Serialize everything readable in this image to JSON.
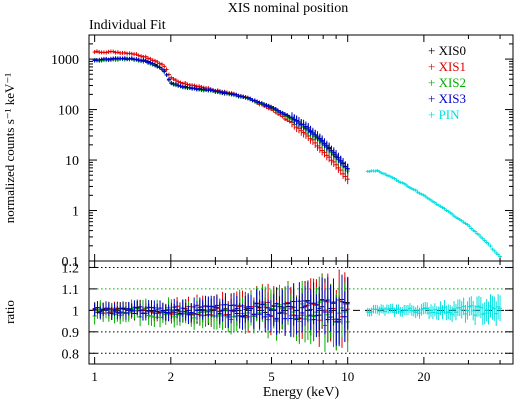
{
  "title": "XIS nominal position",
  "subtitle": "Individual Fit",
  "xlabel": "Energy (keV)",
  "chart_data": [
    {
      "type": "scatter",
      "panel": "spectrum",
      "title": "XIS nominal position",
      "subtitle": "Individual Fit",
      "ylabel": "normalized counts s⁻¹ keV⁻¹",
      "yscale": "log",
      "xscale": "log",
      "xlim": [
        0.95,
        45
      ],
      "ylim": [
        0.1,
        3000
      ],
      "x_ticks": [
        "1",
        "2",
        "5",
        "10",
        "20"
      ],
      "y_ticks": [
        "0.1",
        "1",
        "10",
        "100",
        "1000"
      ],
      "legend_position": "top-right",
      "series": [
        {
          "name": "XIS0",
          "color": "#000000",
          "x": [
            1.0,
            1.2,
            1.4,
            1.6,
            1.8,
            1.9,
            2.0,
            2.2,
            2.5,
            3.0,
            3.5,
            4.0,
            5.0,
            6.0,
            7.0,
            8.0,
            9.0,
            10.0
          ],
          "y": [
            950,
            1000,
            1020,
            900,
            700,
            560,
            330,
            290,
            260,
            230,
            200,
            170,
            110,
            68,
            40,
            22,
            12,
            6.5
          ]
        },
        {
          "name": "XIS1",
          "color": "#e00000",
          "x": [
            1.0,
            1.2,
            1.4,
            1.6,
            1.8,
            1.9,
            2.0,
            2.2,
            2.5,
            3.0,
            3.5,
            4.0,
            5.0,
            6.0,
            7.0,
            8.0,
            9.0,
            10.0
          ],
          "y": [
            1400,
            1380,
            1300,
            1100,
            850,
            700,
            420,
            340,
            300,
            240,
            205,
            170,
            100,
            55,
            30,
            15,
            8,
            4.2
          ]
        },
        {
          "name": "XIS2",
          "color": "#00b000",
          "x": [
            1.0,
            1.2,
            1.4,
            1.6,
            1.8,
            1.9,
            2.0,
            2.2,
            2.5,
            3.0,
            3.5,
            4.0,
            5.0,
            6.0,
            7.0,
            8.0,
            9.0,
            10.0
          ],
          "y": [
            930,
            990,
            1010,
            890,
            690,
            550,
            325,
            285,
            255,
            228,
            198,
            168,
            108,
            66,
            39,
            21,
            11.5,
            6.2
          ]
        },
        {
          "name": "XIS3",
          "color": "#0000d0",
          "x": [
            1.0,
            1.2,
            1.4,
            1.6,
            1.8,
            1.9,
            2.0,
            2.2,
            2.5,
            3.0,
            3.5,
            4.0,
            5.0,
            6.0,
            7.0,
            8.0,
            9.0,
            10.0
          ],
          "y": [
            960,
            1010,
            1030,
            910,
            710,
            565,
            335,
            292,
            262,
            232,
            202,
            172,
            112,
            70,
            42,
            23,
            12.5,
            6.8
          ]
        },
        {
          "name": "PIN",
          "color": "#00e0e0",
          "x": [
            12,
            13,
            15,
            17,
            20,
            25,
            30,
            35,
            40
          ],
          "y": [
            6.0,
            6.2,
            4.5,
            3.2,
            2.0,
            0.95,
            0.5,
            0.25,
            0.12
          ]
        }
      ]
    },
    {
      "type": "scatter",
      "panel": "ratio",
      "ylabel": "ratio",
      "xscale": "log",
      "xlim": [
        0.95,
        45
      ],
      "ylim": [
        0.75,
        1.23
      ],
      "y_ticks": [
        "0.8",
        "0.9",
        "1",
        "1.1",
        "1.2"
      ],
      "reference_lines": [
        {
          "y": 1.2,
          "color": "#000000",
          "style": "dotted"
        },
        {
          "y": 1.1,
          "color": "#00b000",
          "style": "dotted"
        },
        {
          "y": 1.0,
          "color": "#000000",
          "style": "dashed"
        },
        {
          "y": 0.9,
          "color": "#000000",
          "style": "dotted"
        },
        {
          "y": 0.8,
          "color": "#000000",
          "style": "dotted"
        }
      ],
      "series": [
        {
          "name": "XIS0",
          "color": "#000000",
          "x_range": [
            1.0,
            10.0
          ],
          "center": 1.0,
          "scatter_low_e": 0.03,
          "scatter_high_e": 0.12
        },
        {
          "name": "XIS1",
          "color": "#e00000",
          "x_range": [
            1.0,
            10.0
          ],
          "center": 1.0,
          "scatter_low_e": 0.03,
          "scatter_high_e": 0.15
        },
        {
          "name": "XIS2",
          "color": "#00b000",
          "x_range": [
            1.0,
            10.0
          ],
          "center": 0.99,
          "scatter_low_e": 0.04,
          "scatter_high_e": 0.14
        },
        {
          "name": "XIS3",
          "color": "#0000d0",
          "x_range": [
            1.0,
            10.0
          ],
          "center": 1.0,
          "scatter_low_e": 0.03,
          "scatter_high_e": 0.12
        },
        {
          "name": "PIN",
          "color": "#00e0e0",
          "x_range": [
            12.0,
            40.0
          ],
          "center": 1.0,
          "scatter_low_e": 0.02,
          "scatter_high_e": 0.06
        }
      ]
    }
  ]
}
